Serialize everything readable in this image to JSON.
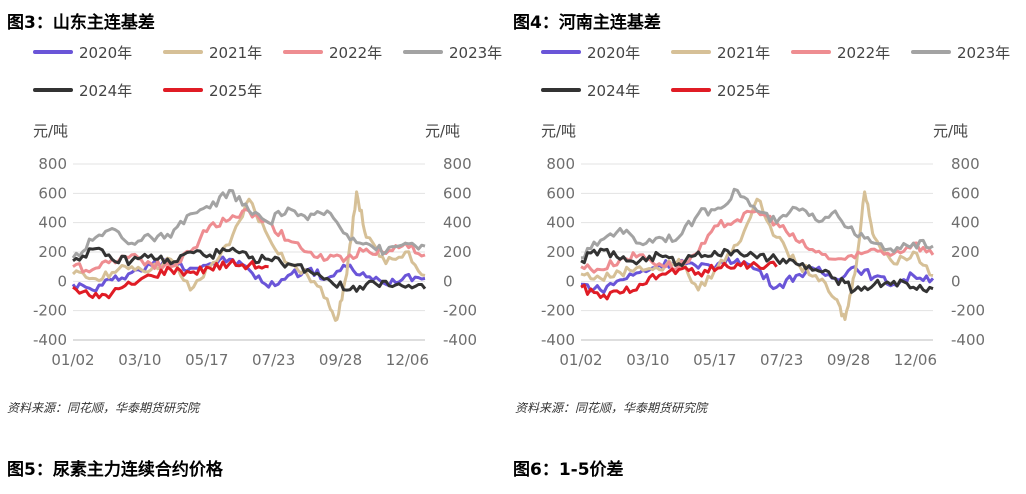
{
  "fig3_title": "图3：山东主连基差",
  "fig4_title": "图4：河南主连基差",
  "fig5_title": "图5：尿素主力连续合约价格",
  "fig6_title": "图6：1-5价差",
  "source_label": "资料来源：同花顺，华泰期货研究院",
  "chart_data": [
    {
      "type": "line",
      "title": "图3：山东主连基差",
      "unit_left": "元/吨",
      "unit_right": "元/吨",
      "x_ticks": [
        "01/02",
        "03/10",
        "05/17",
        "07/23",
        "09/28",
        "12/06"
      ],
      "y_ticks": [
        "800",
        "600",
        "400",
        "200",
        "0",
        "-200",
        "-400"
      ],
      "ylim": [
        -400,
        800
      ],
      "grid": true,
      "legend_position": "top",
      "series": [
        {
          "name": "2020年",
          "color": "#6a55d8",
          "x": [
            0,
            20,
            40,
            60,
            80,
            100,
            120,
            140,
            160,
            180,
            200,
            220,
            240,
            260,
            280,
            300,
            320,
            340,
            360
          ],
          "values": [
            -20,
            -60,
            10,
            60,
            110,
            140,
            90,
            120,
            150,
            80,
            -40,
            40,
            80,
            20,
            100,
            30,
            -20,
            40,
            20
          ]
        },
        {
          "name": "2021年",
          "color": "#d6c097",
          "x": [
            0,
            20,
            40,
            60,
            80,
            100,
            120,
            140,
            160,
            180,
            200,
            220,
            240,
            260,
            270,
            280,
            290,
            300,
            320,
            340,
            360
          ],
          "values": [
            50,
            20,
            60,
            100,
            80,
            150,
            -60,
            100,
            250,
            560,
            300,
            120,
            40,
            -120,
            -260,
            50,
            610,
            300,
            120,
            200,
            40
          ]
        },
        {
          "name": "2022年",
          "color": "#ee8d91",
          "x": [
            0,
            20,
            40,
            60,
            80,
            100,
            120,
            140,
            160,
            180,
            200,
            220,
            240,
            260,
            280,
            300,
            320,
            340,
            360
          ],
          "values": [
            100,
            80,
            150,
            180,
            120,
            100,
            200,
            380,
            420,
            480,
            400,
            280,
            200,
            150,
            160,
            220,
            190,
            260,
            180
          ]
        },
        {
          "name": "2023年",
          "color": "#a3a3a3",
          "x": [
            0,
            20,
            40,
            60,
            80,
            100,
            120,
            140,
            160,
            180,
            200,
            220,
            240,
            260,
            280,
            300,
            320,
            340,
            360
          ],
          "values": [
            160,
            280,
            360,
            260,
            300,
            300,
            460,
            500,
            620,
            480,
            400,
            500,
            420,
            480,
            320,
            260,
            200,
            260,
            240
          ]
        },
        {
          "name": "2024年",
          "color": "#333333",
          "x": [
            0,
            20,
            40,
            60,
            80,
            100,
            120,
            140,
            160,
            180,
            200,
            220,
            240,
            260,
            280,
            300,
            320,
            340,
            360
          ],
          "values": [
            140,
            220,
            150,
            140,
            180,
            120,
            200,
            180,
            210,
            160,
            150,
            120,
            80,
            20,
            -60,
            -20,
            0,
            -40,
            -50
          ]
        },
        {
          "name": "2025年",
          "color": "#e01c25",
          "x": [
            0,
            20,
            40,
            60,
            80,
            100,
            120,
            140,
            160,
            180,
            200
          ],
          "values": [
            -40,
            -110,
            -80,
            -20,
            40,
            80,
            60,
            90,
            120,
            110,
            100
          ]
        }
      ]
    },
    {
      "type": "line",
      "title": "图4：河南主连基差",
      "unit_left": "元/吨",
      "unit_right": "元/吨",
      "x_ticks": [
        "01/02",
        "03/10",
        "05/17",
        "07/23",
        "09/28",
        "12/06"
      ],
      "y_ticks": [
        "800",
        "600",
        "400",
        "200",
        "0",
        "-200",
        "-400"
      ],
      "ylim": [
        -400,
        800
      ],
      "grid": true,
      "legend_position": "top",
      "series": [
        {
          "name": "2020年",
          "color": "#6a55d8",
          "x": [
            0,
            20,
            40,
            60,
            80,
            100,
            120,
            140,
            160,
            180,
            200,
            220,
            240,
            260,
            280,
            300,
            320,
            340,
            360
          ],
          "values": [
            -20,
            -60,
            10,
            60,
            110,
            140,
            90,
            120,
            150,
            80,
            -40,
            40,
            80,
            20,
            100,
            30,
            -20,
            40,
            20
          ]
        },
        {
          "name": "2021年",
          "color": "#d6c097",
          "x": [
            0,
            20,
            40,
            60,
            80,
            100,
            120,
            140,
            160,
            180,
            200,
            220,
            240,
            260,
            270,
            280,
            290,
            300,
            320,
            340,
            360
          ],
          "values": [
            50,
            20,
            60,
            100,
            80,
            150,
            -60,
            100,
            250,
            560,
            300,
            120,
            40,
            -120,
            -260,
            50,
            610,
            300,
            120,
            200,
            40
          ]
        },
        {
          "name": "2022年",
          "color": "#ee8d91",
          "x": [
            0,
            20,
            40,
            60,
            80,
            100,
            120,
            140,
            160,
            180,
            200,
            220,
            240,
            260,
            280,
            300,
            320,
            340,
            360
          ],
          "values": [
            100,
            80,
            150,
            180,
            120,
            100,
            200,
            380,
            420,
            480,
            400,
            280,
            200,
            150,
            160,
            220,
            190,
            260,
            180
          ]
        },
        {
          "name": "2023年",
          "color": "#a3a3a3",
          "x": [
            0,
            20,
            40,
            60,
            80,
            100,
            120,
            140,
            160,
            180,
            200,
            220,
            240,
            260,
            280,
            300,
            320,
            340,
            360
          ],
          "values": [
            160,
            280,
            360,
            260,
            300,
            300,
            460,
            500,
            620,
            480,
            400,
            500,
            420,
            480,
            320,
            260,
            200,
            260,
            240
          ]
        },
        {
          "name": "2024年",
          "color": "#333333",
          "x": [
            0,
            20,
            40,
            60,
            80,
            100,
            120,
            140,
            160,
            180,
            200,
            220,
            240,
            260,
            280,
            300,
            320,
            340,
            360
          ],
          "values": [
            140,
            220,
            150,
            140,
            180,
            120,
            200,
            180,
            210,
            160,
            150,
            120,
            80,
            20,
            -60,
            -20,
            0,
            -40,
            -50
          ]
        },
        {
          "name": "2025年",
          "color": "#e01c25",
          "x": [
            0,
            20,
            40,
            60,
            80,
            100,
            120,
            140,
            160,
            180,
            200
          ],
          "values": [
            -40,
            -110,
            -80,
            -20,
            40,
            80,
            60,
            90,
            120,
            110,
            100
          ]
        }
      ]
    }
  ]
}
